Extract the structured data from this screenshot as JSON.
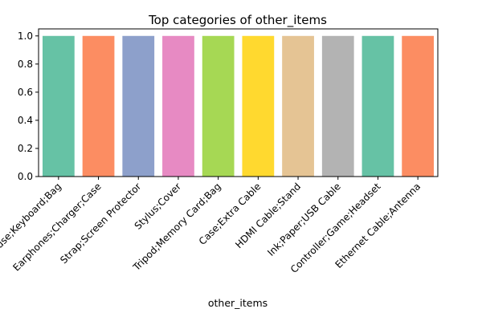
{
  "chart_data": {
    "type": "bar",
    "title": "Top categories of other_items",
    "xlabel": "other_items",
    "ylabel": "",
    "categories": [
      "Mouse;Keyboard;Bag",
      "Earphones;Charger;Case",
      "Strap;Screen Protector",
      "Stylus;Cover",
      "Tripod;Memory Card;Bag",
      "Case;Extra Cable",
      "HDMI Cable;Stand",
      "Ink;Paper;USB Cable",
      "Controller;Game;Headset",
      "Ethernet Cable;Antenna"
    ],
    "values": [
      1,
      1,
      1,
      1,
      1,
      1,
      1,
      1,
      1,
      1
    ],
    "colors": [
      "#66c2a5",
      "#fc8d62",
      "#8da0cb",
      "#e78ac3",
      "#a6d854",
      "#ffd92f",
      "#e5c494",
      "#b3b3b3",
      "#66c2a5",
      "#fc8d62"
    ],
    "ylim": [
      0,
      1.05
    ],
    "yticks": [
      0.0,
      0.2,
      0.4,
      0.6,
      0.8,
      1.0
    ],
    "ytick_labels": [
      "0.0",
      "0.2",
      "0.4",
      "0.6",
      "0.8",
      "1.0"
    ],
    "grid": false,
    "legend": "none"
  }
}
